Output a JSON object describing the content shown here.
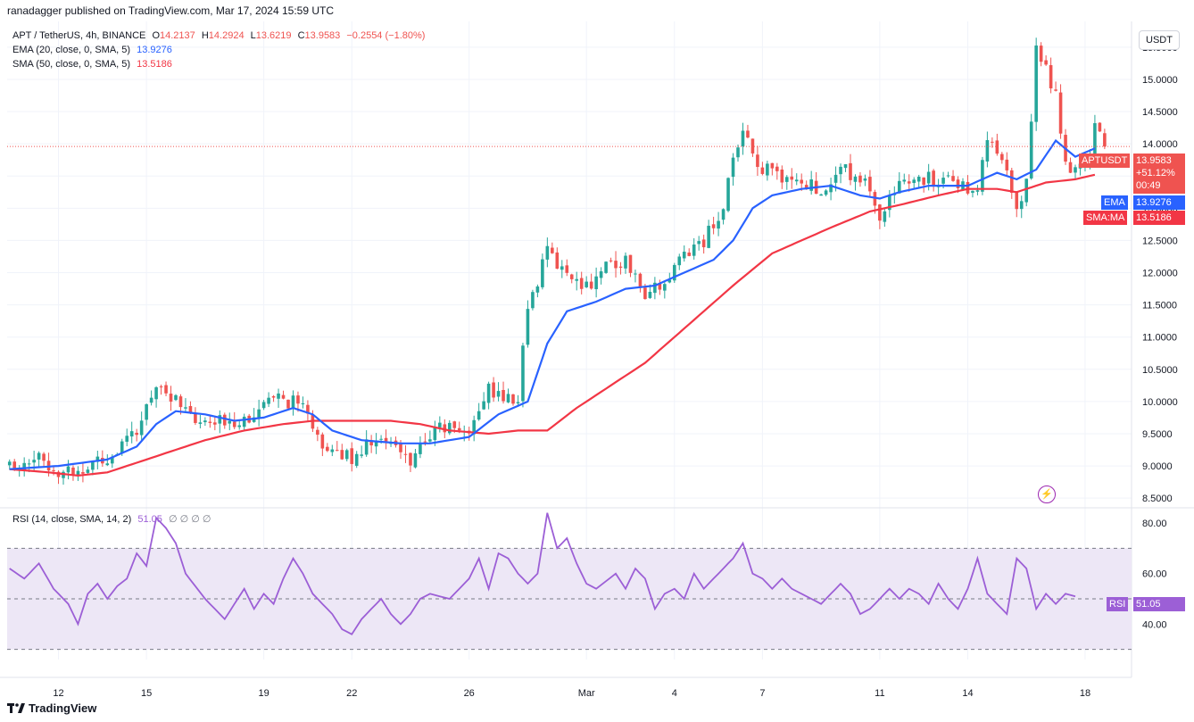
{
  "header": {
    "publisher_text": "ranadagger published on TradingView.com, Mar 17, 2024 15:59 UTC"
  },
  "legend": {
    "symbol": "APT / TetherUS, 4h, BINANCE",
    "open_label": "O",
    "open": "14.2137",
    "high_label": "H",
    "high": "14.2924",
    "low_label": "L",
    "low": "13.6219",
    "close_label": "C",
    "close": "13.9583",
    "change": "−0.2554 (−1.80%)",
    "ema_label": "EMA (20, close, 0, SMA, 5)",
    "ema_value": "13.9276",
    "sma_label": "SMA (50, close, 0, SMA, 5)",
    "sma_value": "13.5186",
    "rsi_label": "RSI (14, close, SMA, 14, 2)",
    "rsi_value": "51.05",
    "rsi_extra": "∅ ∅ ∅ ∅"
  },
  "price_axis": {
    "currency": "USDT",
    "tag_symbol": "APTUSDT",
    "tag_price": "13.9583",
    "tag_change": "+51.12%",
    "tag_timer": "00:49",
    "tag_ema_label": "EMA",
    "tag_ema_value": "13.9276",
    "tag_sma_label": "SMA:MA",
    "tag_sma_value": "13.5186",
    "tag_rsi_label": "RSI",
    "tag_rsi_value": "51.05"
  },
  "footer": {
    "brand": "TradingView"
  },
  "colors": {
    "up": "#26a69a",
    "down": "#ef5350",
    "ema": "#2962ff",
    "sma": "#f23645",
    "rsi": "#9c5fd6",
    "rsi_band": "#ede7f6"
  },
  "chart_data": {
    "type": "candlestick",
    "symbol": "APT / TetherUS",
    "interval": "4h",
    "price_ylim": [
      8.35,
      15.9
    ],
    "price_ticks": [
      "8.5000",
      "9.0000",
      "9.5000",
      "10.0000",
      "10.5000",
      "11.0000",
      "11.5000",
      "12.0000",
      "12.5000",
      "13.0000",
      "13.5000",
      "14.0000",
      "14.5000",
      "15.0000",
      "15.5000"
    ],
    "x_tick_labels": [
      {
        "label": "12",
        "index": 10
      },
      {
        "label": "15",
        "index": 28
      },
      {
        "label": "19",
        "index": 52
      },
      {
        "label": "22",
        "index": 70
      },
      {
        "label": "26",
        "index": 94
      },
      {
        "label": "Mar",
        "index": 118
      },
      {
        "label": "4",
        "index": 136
      },
      {
        "label": "7",
        "index": 154
      },
      {
        "label": "11",
        "index": 178
      },
      {
        "label": "14",
        "index": 196
      },
      {
        "label": "18",
        "index": 220
      }
    ],
    "x_count": 230,
    "price_anchors": [
      [
        0,
        9.0
      ],
      [
        5,
        9.15
      ],
      [
        10,
        8.95
      ],
      [
        14,
        8.9
      ],
      [
        18,
        9.1
      ],
      [
        22,
        9.2
      ],
      [
        26,
        9.5
      ],
      [
        30,
        10.3
      ],
      [
        33,
        10.1
      ],
      [
        36,
        9.8
      ],
      [
        40,
        9.6
      ],
      [
        44,
        9.7
      ],
      [
        48,
        9.75
      ],
      [
        52,
        9.9
      ],
      [
        56,
        10.05
      ],
      [
        60,
        9.9
      ],
      [
        62,
        9.5
      ],
      [
        66,
        9.2
      ],
      [
        70,
        9.15
      ],
      [
        74,
        9.4
      ],
      [
        78,
        9.3
      ],
      [
        82,
        9.1
      ],
      [
        86,
        9.5
      ],
      [
        90,
        9.6
      ],
      [
        94,
        9.55
      ],
      [
        98,
        10.2
      ],
      [
        102,
        10.0
      ],
      [
        104,
        10.1
      ],
      [
        106,
        11.5
      ],
      [
        110,
        12.3
      ],
      [
        114,
        12.0
      ],
      [
        118,
        11.8
      ],
      [
        122,
        12.1
      ],
      [
        126,
        12.2
      ],
      [
        130,
        11.7
      ],
      [
        134,
        11.8
      ],
      [
        138,
        12.3
      ],
      [
        142,
        12.5
      ],
      [
        146,
        13.0
      ],
      [
        148,
        13.8
      ],
      [
        150,
        14.1
      ],
      [
        154,
        13.6
      ],
      [
        158,
        13.5
      ],
      [
        162,
        13.4
      ],
      [
        166,
        13.3
      ],
      [
        170,
        13.6
      ],
      [
        174,
        13.5
      ],
      [
        178,
        12.9
      ],
      [
        182,
        13.3
      ],
      [
        186,
        13.5
      ],
      [
        190,
        13.4
      ],
      [
        194,
        13.4
      ],
      [
        198,
        13.3
      ],
      [
        200,
        14.1
      ],
      [
        204,
        13.5
      ],
      [
        206,
        12.9
      ],
      [
        208,
        13.4
      ],
      [
        210,
        15.5
      ],
      [
        214,
        14.8
      ],
      [
        216,
        13.6
      ],
      [
        220,
        13.6
      ],
      [
        222,
        14.2
      ],
      [
        224,
        13.96
      ]
    ],
    "series": [
      {
        "name": "EMA (20, close, 0, SMA, 5)",
        "type": "line",
        "value_last": 13.9276,
        "anchors": [
          [
            0,
            8.95
          ],
          [
            10,
            9.0
          ],
          [
            20,
            9.1
          ],
          [
            26,
            9.3
          ],
          [
            30,
            9.65
          ],
          [
            34,
            9.85
          ],
          [
            40,
            9.8
          ],
          [
            46,
            9.7
          ],
          [
            52,
            9.75
          ],
          [
            58,
            9.9
          ],
          [
            62,
            9.8
          ],
          [
            66,
            9.55
          ],
          [
            72,
            9.4
          ],
          [
            80,
            9.35
          ],
          [
            86,
            9.35
          ],
          [
            94,
            9.45
          ],
          [
            100,
            9.8
          ],
          [
            106,
            10.0
          ],
          [
            110,
            10.9
          ],
          [
            114,
            11.4
          ],
          [
            120,
            11.55
          ],
          [
            126,
            11.75
          ],
          [
            132,
            11.8
          ],
          [
            138,
            12.0
          ],
          [
            144,
            12.2
          ],
          [
            148,
            12.5
          ],
          [
            152,
            13.0
          ],
          [
            156,
            13.2
          ],
          [
            162,
            13.3
          ],
          [
            168,
            13.35
          ],
          [
            174,
            13.2
          ],
          [
            178,
            13.15
          ],
          [
            182,
            13.25
          ],
          [
            188,
            13.35
          ],
          [
            196,
            13.35
          ],
          [
            202,
            13.55
          ],
          [
            206,
            13.45
          ],
          [
            210,
            13.6
          ],
          [
            214,
            14.05
          ],
          [
            218,
            13.8
          ],
          [
            222,
            13.93
          ]
        ]
      },
      {
        "name": "SMA (50, close, 0, SMA, 5)",
        "type": "line",
        "value_last": 13.5186,
        "anchors": [
          [
            0,
            8.95
          ],
          [
            8,
            8.9
          ],
          [
            14,
            8.85
          ],
          [
            20,
            8.9
          ],
          [
            26,
            9.05
          ],
          [
            32,
            9.2
          ],
          [
            40,
            9.4
          ],
          [
            48,
            9.55
          ],
          [
            56,
            9.65
          ],
          [
            62,
            9.7
          ],
          [
            70,
            9.7
          ],
          [
            78,
            9.7
          ],
          [
            84,
            9.65
          ],
          [
            90,
            9.55
          ],
          [
            98,
            9.5
          ],
          [
            104,
            9.55
          ],
          [
            110,
            9.55
          ],
          [
            116,
            9.9
          ],
          [
            124,
            10.3
          ],
          [
            130,
            10.6
          ],
          [
            136,
            11.0
          ],
          [
            142,
            11.4
          ],
          [
            148,
            11.8
          ],
          [
            156,
            12.3
          ],
          [
            162,
            12.5
          ],
          [
            168,
            12.7
          ],
          [
            176,
            12.95
          ],
          [
            182,
            13.05
          ],
          [
            190,
            13.2
          ],
          [
            196,
            13.3
          ],
          [
            202,
            13.3
          ],
          [
            206,
            13.25
          ],
          [
            212,
            13.4
          ],
          [
            218,
            13.45
          ],
          [
            222,
            13.52
          ]
        ]
      },
      {
        "name": "RSI (14, close, SMA, 14, 2)",
        "type": "line",
        "value_last": 51.05,
        "ylim": [
          26,
          86
        ],
        "bands": [
          30,
          70
        ],
        "mid": 50,
        "anchors": [
          [
            0,
            62
          ],
          [
            3,
            58
          ],
          [
            6,
            64
          ],
          [
            9,
            54
          ],
          [
            12,
            48
          ],
          [
            14,
            40
          ],
          [
            16,
            52
          ],
          [
            18,
            56
          ],
          [
            20,
            50
          ],
          [
            22,
            55
          ],
          [
            24,
            58
          ],
          [
            26,
            68
          ],
          [
            28,
            63
          ],
          [
            30,
            82
          ],
          [
            32,
            78
          ],
          [
            34,
            72
          ],
          [
            36,
            60
          ],
          [
            40,
            50
          ],
          [
            44,
            42
          ],
          [
            48,
            54
          ],
          [
            50,
            46
          ],
          [
            52,
            52
          ],
          [
            54,
            48
          ],
          [
            56,
            58
          ],
          [
            58,
            66
          ],
          [
            60,
            60
          ],
          [
            62,
            52
          ],
          [
            64,
            48
          ],
          [
            66,
            44
          ],
          [
            68,
            38
          ],
          [
            70,
            36
          ],
          [
            72,
            42
          ],
          [
            74,
            46
          ],
          [
            76,
            50
          ],
          [
            78,
            44
          ],
          [
            80,
            40
          ],
          [
            82,
            44
          ],
          [
            84,
            50
          ],
          [
            86,
            52
          ],
          [
            90,
            50
          ],
          [
            94,
            58
          ],
          [
            96,
            66
          ],
          [
            98,
            54
          ],
          [
            100,
            68
          ],
          [
            102,
            66
          ],
          [
            104,
            60
          ],
          [
            106,
            56
          ],
          [
            108,
            60
          ],
          [
            110,
            84
          ],
          [
            112,
            70
          ],
          [
            114,
            74
          ],
          [
            116,
            64
          ],
          [
            118,
            56
          ],
          [
            120,
            54
          ],
          [
            124,
            60
          ],
          [
            126,
            54
          ],
          [
            128,
            62
          ],
          [
            130,
            58
          ],
          [
            132,
            46
          ],
          [
            134,
            52
          ],
          [
            136,
            54
          ],
          [
            138,
            50
          ],
          [
            140,
            60
          ],
          [
            142,
            54
          ],
          [
            144,
            58
          ],
          [
            146,
            62
          ],
          [
            148,
            66
          ],
          [
            150,
            72
          ],
          [
            152,
            60
          ],
          [
            154,
            58
          ],
          [
            156,
            54
          ],
          [
            158,
            58
          ],
          [
            160,
            54
          ],
          [
            162,
            52
          ],
          [
            164,
            50
          ],
          [
            166,
            48
          ],
          [
            168,
            52
          ],
          [
            170,
            56
          ],
          [
            172,
            52
          ],
          [
            174,
            44
          ],
          [
            176,
            46
          ],
          [
            178,
            50
          ],
          [
            180,
            54
          ],
          [
            182,
            50
          ],
          [
            184,
            54
          ],
          [
            186,
            52
          ],
          [
            188,
            48
          ],
          [
            190,
            56
          ],
          [
            192,
            50
          ],
          [
            194,
            46
          ],
          [
            196,
            54
          ],
          [
            198,
            66
          ],
          [
            200,
            52
          ],
          [
            202,
            48
          ],
          [
            204,
            44
          ],
          [
            206,
            66
          ],
          [
            208,
            62
          ],
          [
            210,
            46
          ],
          [
            212,
            52
          ],
          [
            214,
            48
          ],
          [
            216,
            52
          ],
          [
            218,
            51
          ]
        ]
      }
    ],
    "rsi_ticks": [
      "40.00",
      "60.00",
      "80.00"
    ],
    "last_price": 13.9583,
    "grid": true
  }
}
